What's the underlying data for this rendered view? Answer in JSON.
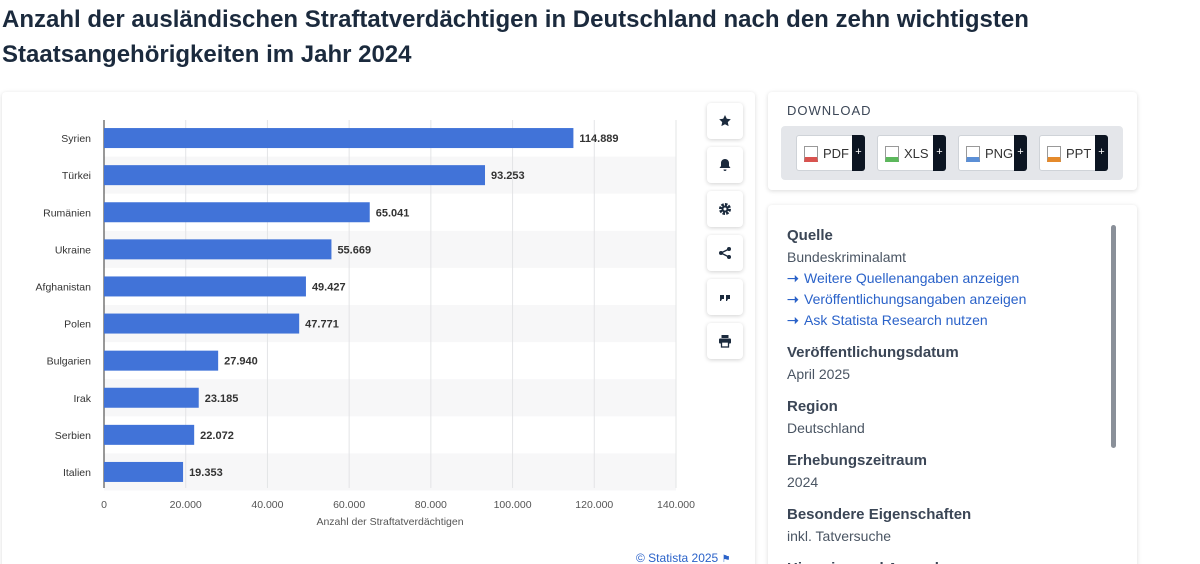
{
  "chart_data": {
    "type": "bar",
    "orientation": "horizontal",
    "title": "Anzahl der ausländischen Straftatverdächtigen in Deutschland nach den zehn wichtigsten Staatsangehörigkeiten im Jahr 2024",
    "categories": [
      "Syrien",
      "Türkei",
      "Rumänien",
      "Ukraine",
      "Afghanistan",
      "Polen",
      "Bulgarien",
      "Irak",
      "Serbien",
      "Italien"
    ],
    "values": [
      114889,
      93253,
      65041,
      55669,
      49427,
      47771,
      27940,
      23185,
      22072,
      19353
    ],
    "value_labels": [
      "114.889",
      "93.253",
      "65.041",
      "55.669",
      "49.427",
      "47.771",
      "27.940",
      "23.185",
      "22.072",
      "19.353"
    ],
    "color": "#4173d8",
    "xlabel": "Anzahl der Straftatverdächtigen",
    "xlim": [
      0,
      140000
    ],
    "xticks": [
      0,
      {
        "value": 20000,
        "label": "20.000"
      },
      {
        "value": 40000,
        "label": "40.000"
      },
      {
        "value": 60000,
        "label": "60.000"
      },
      {
        "value": 80000,
        "label": "80.000"
      },
      {
        "value": 100000,
        "label": "100.000"
      },
      {
        "value": 120000,
        "label": "120.000"
      },
      {
        "value": 140000,
        "label": "140.000"
      }
    ],
    "grid": true
  },
  "footer": {
    "credit": "© Statista 2025"
  },
  "download": {
    "title": "DOWNLOAD",
    "buttons": [
      "PDF",
      "XLS",
      "PNG",
      "PPT"
    ],
    "plus": "+"
  },
  "info": {
    "sections": [
      {
        "heading": "Quelle",
        "text": "Bundeskriminalamt",
        "links": [
          "Weitere Quellenangaben anzeigen",
          "Veröffentlichungsangaben anzeigen",
          "Ask Statista Research nutzen"
        ]
      },
      {
        "heading": "Veröffentlichungsdatum",
        "text": "April 2025"
      },
      {
        "heading": "Region",
        "text": "Deutschland"
      },
      {
        "heading": "Erhebungszeitraum",
        "text": "2024"
      },
      {
        "heading": "Besondere Eigenschaften",
        "text": "inkl. Tatversuche"
      },
      {
        "heading": "Hinweise und Anmerkungen"
      }
    ]
  }
}
